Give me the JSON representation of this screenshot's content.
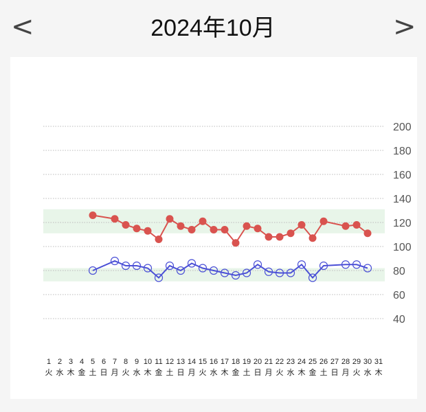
{
  "header": {
    "title": "2024年10月",
    "prev_label": "<",
    "next_label": ">"
  },
  "colors": {
    "systolic": "#d9534f",
    "diastolic": "#4a4fd6",
    "band": "#e8f5e9",
    "grid": "#bbbbbb"
  },
  "chart_data": {
    "type": "line",
    "title": "2024年10月",
    "xlabel": "",
    "ylabel": "",
    "ylim": [
      20,
      220
    ],
    "y_ticks": [
      200,
      180,
      160,
      140,
      120,
      100,
      80,
      60,
      40
    ],
    "grid": true,
    "x": [
      1,
      2,
      3,
      4,
      5,
      6,
      7,
      8,
      9,
      10,
      11,
      12,
      13,
      14,
      15,
      16,
      17,
      18,
      19,
      20,
      21,
      22,
      23,
      24,
      25,
      26,
      27,
      28,
      29,
      30,
      31
    ],
    "weekdays": [
      "火",
      "水",
      "木",
      "金",
      "土",
      "日",
      "月",
      "火",
      "水",
      "木",
      "金",
      "土",
      "日",
      "月",
      "火",
      "水",
      "木",
      "金",
      "土",
      "日",
      "月",
      "火",
      "水",
      "木",
      "金",
      "土",
      "日",
      "月",
      "火",
      "水",
      "木"
    ],
    "bands": [
      {
        "name": "upper-target-range",
        "from": 111,
        "to": 131
      },
      {
        "name": "lower-target-range",
        "from": 71,
        "to": 82
      }
    ],
    "series": [
      {
        "name": "upper",
        "marker": "filled-circle",
        "values": [
          null,
          null,
          null,
          null,
          126,
          null,
          123,
          118,
          115,
          113,
          106,
          123,
          117,
          114,
          121,
          114,
          114,
          103,
          117,
          115,
          108,
          108,
          111,
          118,
          107,
          121,
          null,
          117,
          118,
          111,
          null
        ]
      },
      {
        "name": "lower",
        "marker": "hollow-circle",
        "values": [
          null,
          null,
          null,
          null,
          80,
          null,
          88,
          84,
          84,
          82,
          74,
          84,
          80,
          86,
          82,
          80,
          78,
          76,
          78,
          85,
          79,
          78,
          78,
          85,
          74,
          84,
          null,
          85,
          85,
          82,
          null
        ]
      }
    ]
  }
}
